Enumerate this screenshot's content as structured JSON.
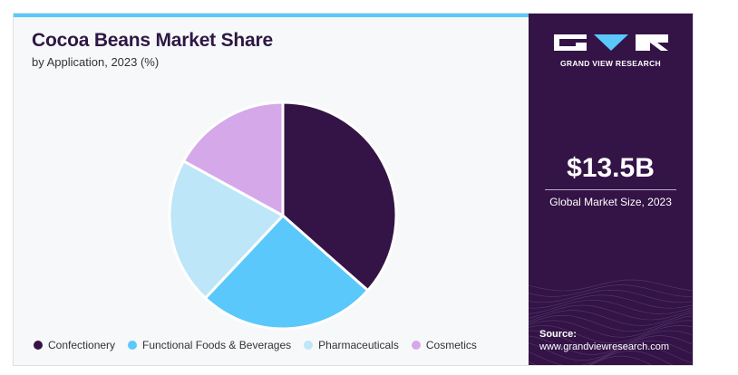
{
  "chart_data": {
    "type": "pie",
    "title": "Cocoa Beans Market Share",
    "subtitle": "by Application, 2023 (%)",
    "categories": [
      "Confectionery",
      "Functional Foods & Beverages",
      "Pharmaceuticals",
      "Cosmetics"
    ],
    "values": [
      36.5,
      25.5,
      21.0,
      17.0
    ],
    "colors": [
      "#341346",
      "#5ac8fa",
      "#bde6f8",
      "#d5a8ea"
    ],
    "legend_position": "bottom"
  },
  "brand": {
    "name": "GRAND VIEW RESEARCH"
  },
  "market": {
    "size": "$13.5B",
    "label": "Global Market Size, 2023"
  },
  "source": {
    "label": "Source:",
    "url": "www.grandviewresearch.com"
  },
  "colors": {
    "accent": "#5ac8fa",
    "panel": "#341346",
    "title": "#2e1745"
  },
  "icons": {
    "logo": "gvr-logo-icon"
  }
}
